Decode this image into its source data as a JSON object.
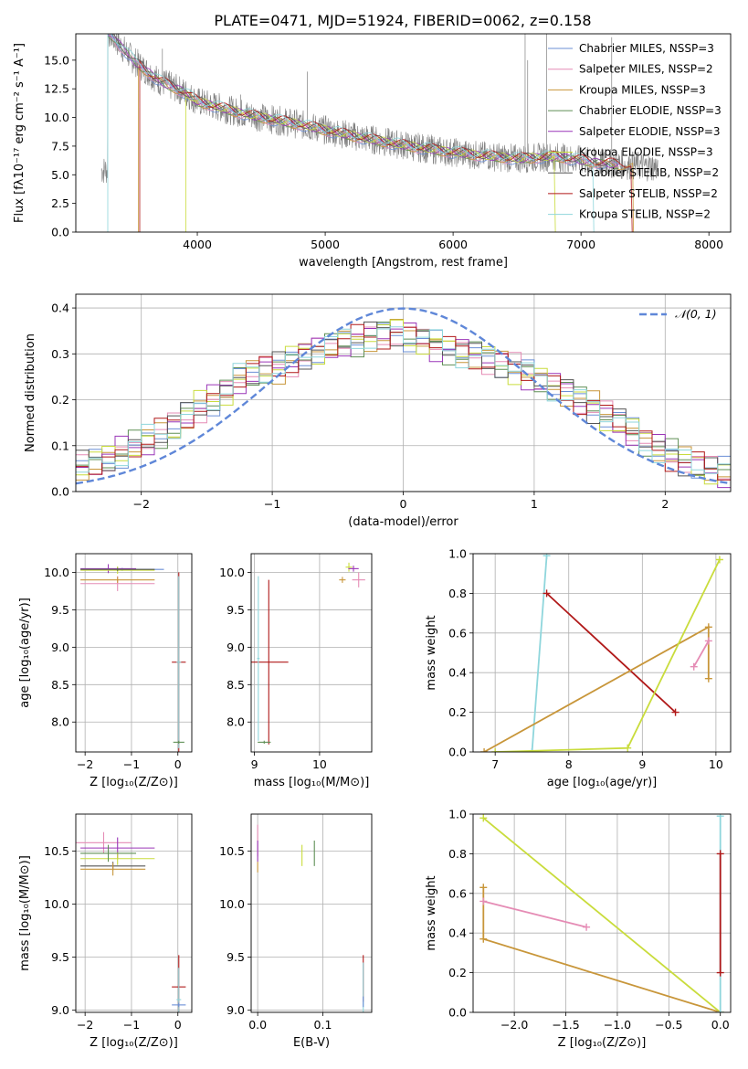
{
  "title": "PLATE=0471, MJD=51924, FIBERID=0062, z=0.158",
  "colors": {
    "chabrier_miles": "#6b8fd6",
    "salpeter_miles": "#e58cb5",
    "kroupa_miles": "#c8963a",
    "chabrier_elodie": "#5f8f55",
    "salpeter_elodie": "#9a36b8",
    "kroupa_elodie": "#c9dc3c",
    "chabrier_stelib": "#555555",
    "salpeter_stelib": "#b01818",
    "kroupa_stelib": "#8fd6dc",
    "data": "#808080",
    "gaussian": "#5f87d8"
  },
  "chart_data": [
    {
      "id": "spectrum",
      "type": "line",
      "xlabel": "wavelength [Angstrom, rest frame]",
      "ylabel": "Flux [fλ10⁻¹⁷ erg cm⁻² s⁻¹ A⁻¹]",
      "xlim": [
        3050,
        8170
      ],
      "ylim": [
        0,
        17.3
      ],
      "xticks": [
        4000,
        5000,
        6000,
        7000,
        8000
      ],
      "yticks": [
        0.0,
        2.5,
        5.0,
        7.5,
        10.0,
        12.5,
        15.0
      ],
      "grid": false,
      "legend_position": "top-right",
      "continuum": {
        "x": [
          3300,
          3500,
          3700,
          3900,
          4000,
          4300,
          4500,
          4800,
          5000,
          5300,
          5600,
          5900,
          6200,
          6500,
          6800,
          7100,
          7400,
          7700,
          8000,
          8170
        ],
        "y": [
          17.5,
          15.0,
          13.2,
          12.2,
          11.4,
          10.5,
          10.0,
          9.4,
          8.9,
          8.2,
          7.6,
          7.1,
          6.7,
          6.4,
          6.6,
          6.1,
          5.8,
          5.6,
          5.5,
          5.4
        ]
      },
      "series": [
        {
          "name": "Chabrier MILES, NSSP=3",
          "key": "chabrier_miles"
        },
        {
          "name": "Salpeter MILES, NSSP=2",
          "key": "salpeter_miles"
        },
        {
          "name": "Kroupa MILES, NSSP=3",
          "key": "kroupa_miles"
        },
        {
          "name": "Chabrier ELODIE, NSSP=3",
          "key": "chabrier_elodie"
        },
        {
          "name": "Salpeter ELODIE, NSSP=3",
          "key": "salpeter_elodie"
        },
        {
          "name": "Kroupa ELODIE, NSSP=3",
          "key": "kroupa_elodie"
        },
        {
          "name": "Chabrier STELIB, NSSP=2",
          "key": "chabrier_stelib"
        },
        {
          "name": "Salpeter STELIB, NSSP=2",
          "key": "salpeter_stelib"
        },
        {
          "name": "Kroupa STELIB, NSSP=2",
          "key": "kroupa_stelib"
        }
      ]
    },
    {
      "id": "residuals",
      "type": "line",
      "xlabel": "(data-model)/error",
      "ylabel": "Normed distribution",
      "xlim": [
        -2.5,
        2.5
      ],
      "ylim": [
        0,
        0.43
      ],
      "xticks": [
        -2,
        -1,
        0,
        1,
        2
      ],
      "yticks": [
        0.0,
        0.1,
        0.2,
        0.3,
        0.4
      ],
      "grid": true,
      "legend_position": "top-right",
      "gaussian_label": "𝒩(0, 1)",
      "bin_width": 0.1,
      "bin_start": -2.5,
      "histogram": [
        0.055,
        0.06,
        0.07,
        0.085,
        0.1,
        0.11,
        0.125,
        0.14,
        0.165,
        0.185,
        0.2,
        0.22,
        0.245,
        0.255,
        0.265,
        0.27,
        0.285,
        0.3,
        0.31,
        0.315,
        0.325,
        0.33,
        0.34,
        0.345,
        0.35,
        0.34,
        0.33,
        0.32,
        0.31,
        0.305,
        0.3,
        0.29,
        0.28,
        0.27,
        0.255,
        0.24,
        0.23,
        0.22,
        0.2,
        0.185,
        0.165,
        0.15,
        0.13,
        0.11,
        0.095,
        0.08,
        0.065,
        0.055,
        0.045,
        0.04
      ]
    },
    {
      "id": "age_vs_Z",
      "type": "scatter",
      "xlabel": "Z [log₁₀(Z/Z⊙)]",
      "ylabel": "age  [log₁₀(age/yr)]",
      "xlim": [
        -2.2,
        0.3
      ],
      "ylim": [
        7.6,
        10.25
      ],
      "xticks": [
        -2,
        -1,
        0
      ],
      "yticks": [
        8.0,
        8.5,
        9.0,
        9.5,
        10.0
      ],
      "grid": true,
      "points": [
        {
          "key": "chabrier_miles",
          "x": -1.2,
          "y": 10.04,
          "xerr": 0.9,
          "yerr": 0.02
        },
        {
          "key": "salpeter_miles",
          "x": -1.3,
          "y": 9.85,
          "xerr": 0.8,
          "yerr": 0.1
        },
        {
          "key": "kroupa_miles",
          "x": -1.3,
          "y": 9.9,
          "xerr": 0.8,
          "yerr": 0.04
        },
        {
          "key": "salpeter_elodie",
          "x": -1.5,
          "y": 10.05,
          "xerr": 0.6,
          "yerr": 0.06
        },
        {
          "key": "kroupa_elodie",
          "x": -1.3,
          "y": 10.03,
          "xerr": 0.8,
          "yerr": 0.05
        },
        {
          "key": "chabrier_stelib",
          "x": -1.3,
          "y": 10.04,
          "xerr": 0.8,
          "yerr": 0.02
        },
        {
          "key": "salpeter_stelib",
          "x": 0.02,
          "y": 8.8,
          "xerr": 0.15,
          "yerr": 1.2
        },
        {
          "key": "kroupa_stelib",
          "x": 0.02,
          "y": 8.8,
          "xerr": 0.05,
          "yerr": 1.15
        },
        {
          "key": "chabrier_elodie",
          "x": 0.02,
          "y": 7.73,
          "xerr": 0.12,
          "yerr": 0.02
        }
      ]
    },
    {
      "id": "age_vs_mass",
      "type": "scatter",
      "xlabel": "mass [log₁₀(M/M⊙)]",
      "ylabel": "",
      "xlim": [
        8.95,
        10.8
      ],
      "ylim": [
        7.6,
        10.25
      ],
      "xticks": [
        9,
        10
      ],
      "yticks": [
        8.0,
        8.5,
        9.0,
        9.5,
        10.0
      ],
      "grid": true,
      "points": [
        {
          "key": "kroupa_elodie",
          "x": 10.45,
          "y": 10.07,
          "xerr": 0.05,
          "yerr": 0.06
        },
        {
          "key": "salpeter_elodie",
          "x": 10.52,
          "y": 10.05,
          "xerr": 0.08,
          "yerr": 0.04
        },
        {
          "key": "salpeter_miles",
          "x": 10.6,
          "y": 9.9,
          "xerr": 0.1,
          "yerr": 0.1
        },
        {
          "key": "kroupa_miles",
          "x": 10.35,
          "y": 9.9,
          "xerr": 0.05,
          "yerr": 0.04
        },
        {
          "key": "salpeter_stelib",
          "x": 9.22,
          "y": 8.8,
          "xerr": 0.3,
          "yerr": 1.1
        },
        {
          "key": "kroupa_stelib",
          "x": 9.06,
          "y": 8.85,
          "xerr": 0.02,
          "yerr": 1.1
        },
        {
          "key": "chabrier_elodie",
          "x": 9.15,
          "y": 7.73,
          "xerr": 0.1,
          "yerr": 0.02
        }
      ]
    },
    {
      "id": "weight_vs_age",
      "type": "line",
      "xlabel": "age  [log₁₀(age/yr)]",
      "ylabel": "mass weight",
      "xlim": [
        6.7,
        10.2
      ],
      "ylim": [
        0,
        1
      ],
      "xticks": [
        7,
        8,
        9,
        10
      ],
      "yticks": [
        0.0,
        0.2,
        0.4,
        0.6,
        0.8,
        1.0
      ],
      "grid": true,
      "series": [
        {
          "key": "kroupa_stelib",
          "x": [
            7.5,
            7.7
          ],
          "y": [
            0.0,
            0.99
          ]
        },
        {
          "key": "salpeter_stelib",
          "x": [
            7.7,
            9.45
          ],
          "y": [
            0.8,
            0.2
          ]
        },
        {
          "key": "kroupa_miles",
          "x": [
            6.85,
            9.9,
            9.9
          ],
          "y": [
            0.0,
            0.63,
            0.37
          ]
        },
        {
          "key": "kroupa_elodie",
          "x": [
            7.0,
            8.8,
            10.05
          ],
          "y": [
            0.0,
            0.02,
            0.97
          ]
        },
        {
          "key": "salpeter_miles",
          "x": [
            9.7,
            9.9
          ],
          "y": [
            0.43,
            0.56
          ]
        }
      ]
    },
    {
      "id": "mass_vs_Z",
      "type": "scatter",
      "xlabel": "Z [log₁₀(Z/Z⊙)]",
      "ylabel": "mass [log₁₀(M/M⊙)]",
      "xlim": [
        -2.2,
        0.3
      ],
      "ylim": [
        8.98,
        10.85
      ],
      "xticks": [
        -2,
        -1,
        0
      ],
      "yticks": [
        9.0,
        9.5,
        10.0,
        10.5
      ],
      "grid": true,
      "points": [
        {
          "key": "salpeter_miles",
          "x": -1.6,
          "y": 10.58,
          "xerr": 0.6,
          "yerr": 0.1
        },
        {
          "key": "salpeter_elodie",
          "x": -1.3,
          "y": 10.53,
          "xerr": 0.8,
          "yerr": 0.1
        },
        {
          "key": "kroupa_elodie",
          "x": -1.3,
          "y": 10.43,
          "xerr": 0.8,
          "yerr": 0.06
        },
        {
          "key": "chabrier_elodie",
          "x": -1.5,
          "y": 10.48,
          "xerr": 0.6,
          "yerr": 0.08
        },
        {
          "key": "chabrier_stelib",
          "x": -1.4,
          "y": 10.36,
          "xerr": 0.7,
          "yerr": 0.04
        },
        {
          "key": "kroupa_miles",
          "x": -1.4,
          "y": 10.33,
          "xerr": 0.7,
          "yerr": 0.06
        },
        {
          "key": "salpeter_stelib",
          "x": 0.02,
          "y": 9.22,
          "xerr": 0.15,
          "yerr": 0.3
        },
        {
          "key": "kroupa_stelib",
          "x": 0.02,
          "y": 9.1,
          "xerr": 0.05,
          "yerr": 0.3
        },
        {
          "key": "chabrier_miles",
          "x": 0.02,
          "y": 9.05,
          "xerr": 0.15,
          "yerr": 0.02
        }
      ]
    },
    {
      "id": "mass_vs_ebv",
      "type": "scatter",
      "xlabel": "E(B-V)",
      "ylabel": "",
      "xlim": [
        -0.01,
        0.175
      ],
      "ylim": [
        8.98,
        10.85
      ],
      "xticks": [
        0.0,
        0.1
      ],
      "yticks": [
        9.0,
        9.5,
        10.0,
        10.5
      ],
      "grid": true,
      "points": [
        {
          "key": "salpeter_miles",
          "x": 0.0,
          "y": 10.6,
          "xerr": 0.0,
          "yerr": 0.15
        },
        {
          "key": "salpeter_elodie",
          "x": 0.0,
          "y": 10.5,
          "xerr": 0.0,
          "yerr": 0.1
        },
        {
          "key": "kroupa_miles",
          "x": 0.0,
          "y": 10.35,
          "xerr": 0.0,
          "yerr": 0.05
        },
        {
          "key": "kroupa_elodie",
          "x": 0.068,
          "y": 10.46,
          "xerr": 0.0,
          "yerr": 0.1
        },
        {
          "key": "chabrier_elodie",
          "x": 0.087,
          "y": 10.48,
          "xerr": 0.0,
          "yerr": 0.12
        },
        {
          "key": "salpeter_stelib",
          "x": 0.162,
          "y": 9.3,
          "xerr": 0.0,
          "yerr": 0.22
        },
        {
          "key": "kroupa_stelib",
          "x": 0.162,
          "y": 9.2,
          "xerr": 0.0,
          "yerr": 0.25
        },
        {
          "key": "chabrier_miles",
          "x": 0.162,
          "y": 9.08,
          "xerr": 0.0,
          "yerr": 0.05
        }
      ]
    },
    {
      "id": "weight_vs_Z",
      "type": "line",
      "xlabel": "Z [log₁₀(Z/Z⊙)]",
      "ylabel": "mass weight",
      "xlim": [
        -2.4,
        0.1
      ],
      "ylim": [
        0,
        1
      ],
      "xticks": [
        -2.0,
        -1.5,
        -1.0,
        -0.5,
        0.0
      ],
      "yticks": [
        0.0,
        0.2,
        0.4,
        0.6,
        0.8,
        1.0
      ],
      "grid": true,
      "series": [
        {
          "key": "kroupa_elodie",
          "x": [
            -2.3,
            0.0
          ],
          "y": [
            0.98,
            0.0
          ]
        },
        {
          "key": "kroupa_miles",
          "x": [
            -2.3,
            -2.3,
            0.0
          ],
          "y": [
            0.63,
            0.37,
            0.0
          ]
        },
        {
          "key": "salpeter_miles",
          "x": [
            -2.3,
            -1.3
          ],
          "y": [
            0.56,
            0.43
          ]
        },
        {
          "key": "kroupa_stelib",
          "x": [
            0.0,
            0.0
          ],
          "y": [
            0.0,
            0.99
          ]
        },
        {
          "key": "salpeter_stelib",
          "x": [
            0.0,
            0.0
          ],
          "y": [
            0.2,
            0.8
          ]
        }
      ]
    }
  ]
}
